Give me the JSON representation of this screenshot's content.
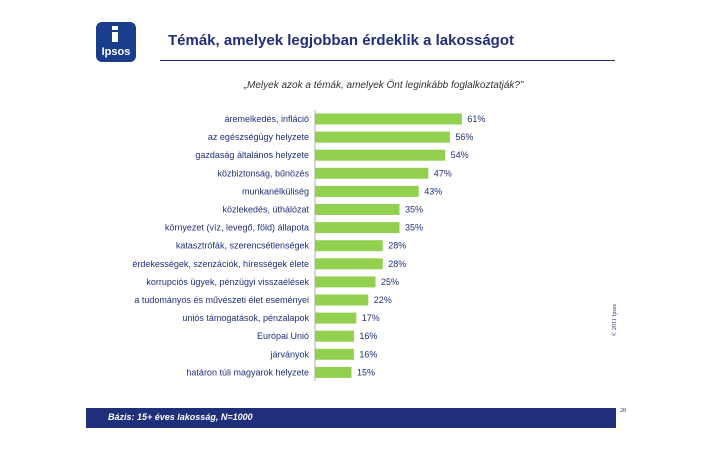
{
  "header": {
    "logo_text": "Ipsos",
    "title": "Témák, amelyek legjobban érdeklik a lakosságot"
  },
  "question": "„Melyek azok a témák, amelyek  Önt leginkább foglalkoztatják?”",
  "colors": {
    "bar": "#92d050",
    "brand": "#1f2f7a"
  },
  "chart_data": {
    "type": "bar",
    "orientation": "horizontal",
    "title": "",
    "xlabel": "",
    "ylabel": "",
    "xlim": [
      0,
      100
    ],
    "grid": false,
    "categories": [
      "áremelkedés, infláció",
      "az egészségügy helyzete",
      "gazdaság általános helyzete",
      "közbiztonság, bűnözés",
      "munkanélküliség",
      "közlekedés, úthálózat",
      "környezet (víz, levegő, föld) állapota",
      "katasztrófák, szerencsétlenségek",
      "érdekességek, szenzációk, hírességek élete",
      "korrupciós ügyek, pénzügyi visszaélések",
      "a tudományos és művészeti élet eseményei",
      "uniós támogatások, pénzalapok",
      "Európai Unió",
      "járványok",
      "határon túli magyarok helyzete"
    ],
    "values": [
      61,
      56,
      54,
      47,
      43,
      35,
      35,
      28,
      28,
      25,
      22,
      17,
      16,
      16,
      15
    ],
    "value_labels": [
      "61%",
      "56%",
      "54%",
      "47%",
      "43%",
      "35%",
      "35%",
      "28%",
      "28%",
      "25%",
      "22%",
      "17%",
      "16%",
      "16%",
      "15%"
    ]
  },
  "copyright": "© 2011 Ipsos",
  "footer": {
    "text": "Bázis: 15+ éves lakosság, N=1000"
  },
  "page_number": "28"
}
